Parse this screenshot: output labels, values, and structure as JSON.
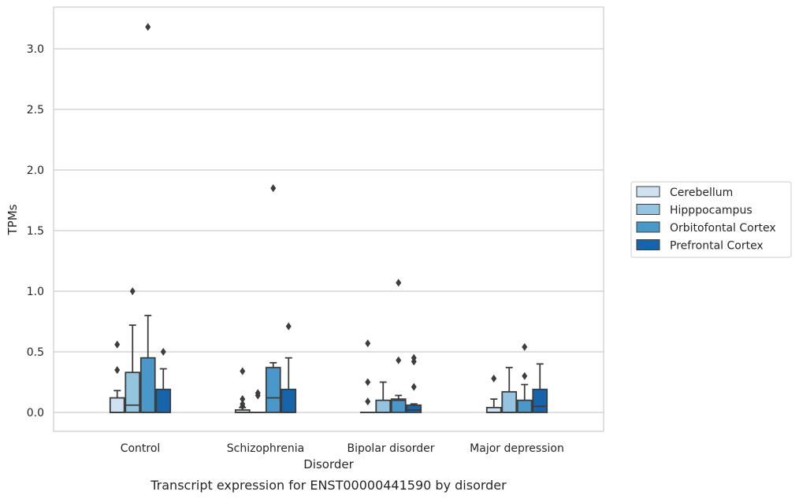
{
  "caption": "Transcript expression for ENST00000441590 by disorder",
  "chart_data": {
    "type": "box",
    "xlabel": "Disorder",
    "ylabel": "TPMs",
    "ylim": [
      -0.15,
      3.35
    ],
    "yticks": [
      "0.0",
      "0.5",
      "1.0",
      "1.5",
      "2.0",
      "2.5",
      "3.0"
    ],
    "grid": "horizontal",
    "legend_position": "right",
    "categories": [
      "Control",
      "Schizophrenia",
      "Bipolar disorder",
      "Major depression"
    ],
    "series": [
      {
        "name": "Cerebellum",
        "color": "#d0e1f2",
        "boxes": [
          {
            "q1": 0.0,
            "median": 0.0,
            "q3": 0.12,
            "whisker_low": 0.0,
            "whisker_high": 0.18,
            "outliers": [
              0.35,
              0.56
            ]
          },
          {
            "q1": 0.0,
            "median": 0.0,
            "q3": 0.02,
            "whisker_low": 0.0,
            "whisker_high": 0.04,
            "outliers": [
              0.05,
              0.07,
              0.11,
              0.34
            ]
          },
          {
            "q1": 0.0,
            "median": 0.0,
            "q3": 0.0,
            "whisker_low": 0.0,
            "whisker_high": 0.0,
            "outliers": [
              0.09,
              0.25,
              0.57
            ]
          },
          {
            "q1": 0.0,
            "median": 0.0,
            "q3": 0.04,
            "whisker_low": 0.0,
            "whisker_high": 0.11,
            "outliers": [
              0.28
            ]
          }
        ]
      },
      {
        "name": "Hipppocampus",
        "color": "#94c4df",
        "boxes": [
          {
            "q1": 0.0,
            "median": 0.06,
            "q3": 0.33,
            "whisker_low": 0.0,
            "whisker_high": 0.72,
            "outliers": [
              1.0
            ]
          },
          {
            "q1": 0.0,
            "median": 0.0,
            "q3": 0.0,
            "whisker_low": 0.0,
            "whisker_high": 0.0,
            "outliers": [
              0.14,
              0.16
            ]
          },
          {
            "q1": 0.0,
            "median": 0.0,
            "q3": 0.1,
            "whisker_low": 0.0,
            "whisker_high": 0.25,
            "outliers": []
          },
          {
            "q1": 0.0,
            "median": 0.0,
            "q3": 0.17,
            "whisker_low": 0.0,
            "whisker_high": 0.37,
            "outliers": []
          }
        ]
      },
      {
        "name": "Orbitofontal Cortex",
        "color": "#4a98c9",
        "boxes": [
          {
            "q1": 0.0,
            "median": 0.0,
            "q3": 0.45,
            "whisker_low": 0.0,
            "whisker_high": 0.8,
            "outliers": [
              3.18
            ]
          },
          {
            "q1": 0.0,
            "median": 0.12,
            "q3": 0.37,
            "whisker_low": 0.0,
            "whisker_high": 0.41,
            "outliers": [
              1.85
            ]
          },
          {
            "q1": 0.0,
            "median": 0.1,
            "q3": 0.11,
            "whisker_low": 0.0,
            "whisker_high": 0.14,
            "outliers": [
              0.43,
              1.07
            ]
          },
          {
            "q1": 0.0,
            "median": 0.0,
            "q3": 0.1,
            "whisker_low": 0.0,
            "whisker_high": 0.23,
            "outliers": [
              0.3,
              0.54
            ]
          }
        ]
      },
      {
        "name": "Prefrontal Cortex",
        "color": "#1764ab",
        "boxes": [
          {
            "q1": 0.0,
            "median": 0.0,
            "q3": 0.19,
            "whisker_low": 0.0,
            "whisker_high": 0.36,
            "outliers": [
              0.5
            ]
          },
          {
            "q1": 0.0,
            "median": 0.0,
            "q3": 0.19,
            "whisker_low": 0.0,
            "whisker_high": 0.45,
            "outliers": [
              0.71
            ]
          },
          {
            "q1": 0.0,
            "median": 0.02,
            "q3": 0.06,
            "whisker_low": 0.0,
            "whisker_high": 0.07,
            "outliers": [
              0.21,
              0.42,
              0.45
            ]
          },
          {
            "q1": 0.0,
            "median": 0.05,
            "q3": 0.19,
            "whisker_low": 0.0,
            "whisker_high": 0.4,
            "outliers": []
          }
        ]
      }
    ]
  }
}
